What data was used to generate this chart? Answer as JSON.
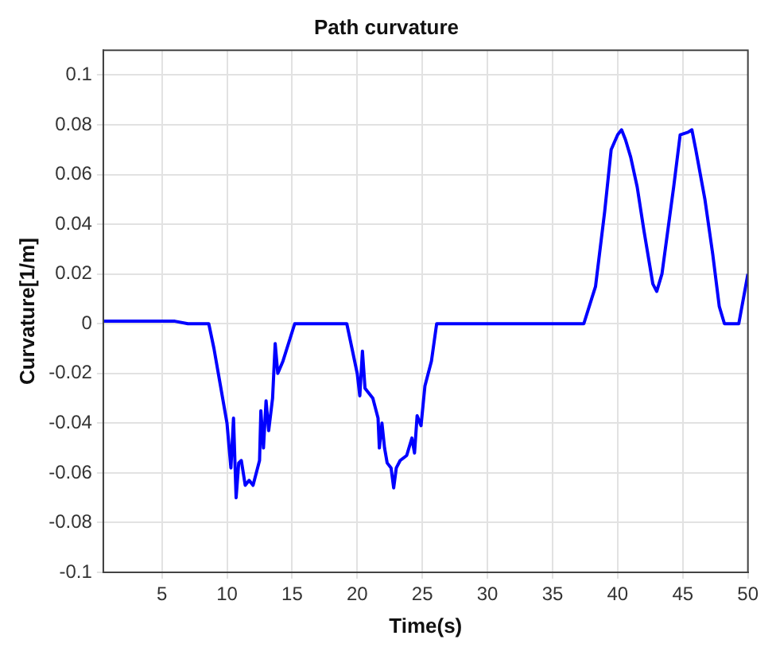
{
  "chart_data": {
    "type": "line",
    "title": "Path curvature",
    "xlabel": "Time(s)",
    "ylabel": "Curvature[1/m]",
    "x": [
      0.5,
      3,
      6,
      7,
      8,
      8.6,
      9,
      9.5,
      10,
      10.3,
      10.5,
      10.7,
      10.9,
      11.1,
      11.4,
      11.7,
      12,
      12.5,
      12.6,
      12.8,
      13,
      13.2,
      13.5,
      13.7,
      13.9,
      14.3,
      15.2,
      17,
      19.2,
      19.6,
      20,
      20.2,
      20.4,
      20.6,
      21.2,
      21.6,
      21.7,
      21.9,
      22.1,
      22.3,
      22.6,
      22.8,
      23,
      23.3,
      23.8,
      24.2,
      24.4,
      24.6,
      24.9,
      25.2,
      25.7,
      26.1,
      30,
      37.4,
      38,
      38.3,
      39,
      39.5,
      40,
      40.3,
      40.6,
      41,
      41.5,
      42,
      42.7,
      43,
      43.4,
      44.3,
      44.8,
      45.4,
      45.7,
      46,
      46.7,
      47.3,
      47.8,
      48.2,
      49.3,
      50
    ],
    "series": [
      {
        "color": "#0000ff",
        "values": [
          0.001,
          0.001,
          0.001,
          0,
          0,
          0,
          -0.01,
          -0.025,
          -0.04,
          -0.058,
          -0.038,
          -0.07,
          -0.056,
          -0.055,
          -0.065,
          -0.063,
          -0.065,
          -0.055,
          -0.035,
          -0.05,
          -0.031,
          -0.043,
          -0.03,
          -0.008,
          -0.02,
          -0.015,
          0,
          0,
          0,
          -0.01,
          -0.02,
          -0.029,
          -0.011,
          -0.026,
          -0.03,
          -0.038,
          -0.05,
          -0.04,
          -0.05,
          -0.056,
          -0.058,
          -0.066,
          -0.058,
          -0.055,
          -0.053,
          -0.046,
          -0.052,
          -0.037,
          -0.041,
          -0.025,
          -0.015,
          0,
          0,
          0,
          0.01,
          0.015,
          0.045,
          0.07,
          0.076,
          0.078,
          0.074,
          0.067,
          0.055,
          0.038,
          0.016,
          0.013,
          0.02,
          0.055,
          0.076,
          0.077,
          0.078,
          0.07,
          0.05,
          0.028,
          0.007,
          0,
          0,
          0.02
        ]
      }
    ],
    "xlim": [
      0.5,
      50
    ],
    "xticks": [
      5,
      10,
      15,
      20,
      25,
      30,
      35,
      40,
      45,
      50
    ],
    "ylim": [
      -0.1,
      0.11
    ],
    "yticks": [
      -0.1,
      -0.08,
      -0.06,
      -0.04,
      -0.02,
      0,
      0.02,
      0.04,
      0.06,
      0.08,
      0.1
    ],
    "grid": true,
    "legend": false,
    "marker": "none",
    "line_style": "solid"
  }
}
